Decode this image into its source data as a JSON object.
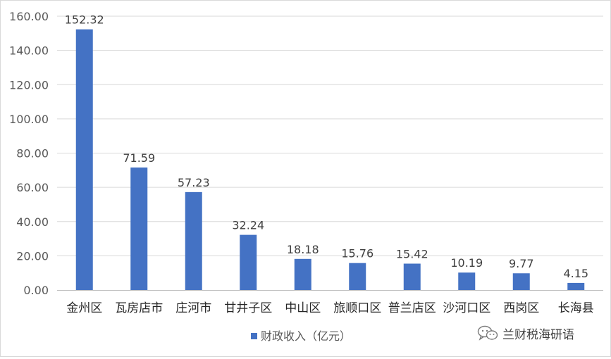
{
  "chart_data": {
    "type": "bar",
    "categories": [
      "金州区",
      "瓦房店市",
      "庄河市",
      "甘井子区",
      "中山区",
      "旅顺口区",
      "普兰店区",
      "沙河口区",
      "西岗区",
      "长海县"
    ],
    "series": [
      {
        "name": "财政收入（亿元）",
        "values": [
          152.32,
          71.59,
          57.23,
          32.24,
          18.18,
          15.76,
          15.42,
          10.19,
          9.77,
          4.15
        ],
        "color": "#4472c4"
      }
    ],
    "data_labels": [
      "152.32",
      "71.59",
      "57.23",
      "32.24",
      "18.18",
      "15.76",
      "15.42",
      "10.19",
      "9.77",
      "4.15"
    ],
    "y_ticks": [
      "0.00",
      "20.00",
      "40.00",
      "60.00",
      "80.00",
      "100.00",
      "120.00",
      "140.00",
      "160.00"
    ],
    "ylim": [
      0,
      160
    ],
    "grid": true,
    "legend_position": "bottom",
    "title": "",
    "xlabel": "",
    "ylabel": ""
  },
  "legend": {
    "label": "财政收入（亿元）"
  },
  "watermark": {
    "text": "兰财税海研语",
    "icon": "wechat-icon"
  },
  "colors": {
    "bar": "#4472c4",
    "grid": "#d9d9d9",
    "axis": "#bfbfbf"
  }
}
